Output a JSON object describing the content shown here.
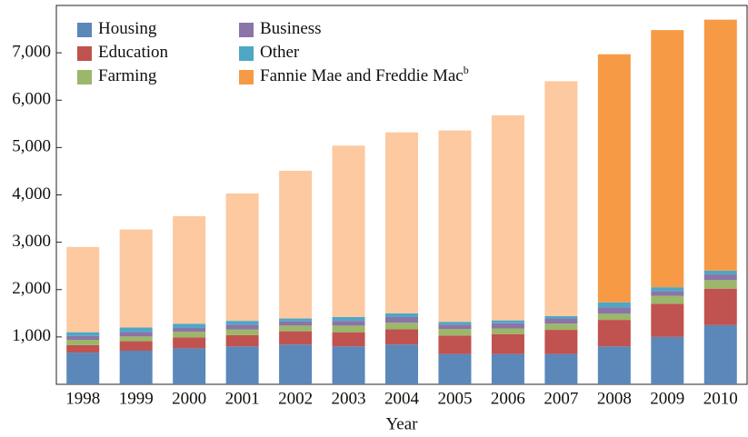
{
  "chart_data": {
    "type": "stacked_bar",
    "x_label": "Year",
    "categories": [
      "1998",
      "1999",
      "2000",
      "2001",
      "2002",
      "2003",
      "2004",
      "2005",
      "2006",
      "2007",
      "2008",
      "2009",
      "2010"
    ],
    "series": [
      {
        "name": "Housing",
        "color": "#5b87b9",
        "values": [
          670,
          710,
          760,
          800,
          840,
          800,
          840,
          640,
          640,
          640,
          800,
          1000,
          1250
        ]
      },
      {
        "name": "Education",
        "color": "#c0524f",
        "values": [
          160,
          200,
          230,
          240,
          280,
          300,
          320,
          390,
          420,
          510,
          560,
          700,
          770
        ]
      },
      {
        "name": "Farming",
        "color": "#9bb76a",
        "values": [
          110,
          100,
          120,
          120,
          120,
          140,
          140,
          140,
          120,
          130,
          130,
          170,
          180
        ]
      },
      {
        "name": "Business",
        "color": "#8b74a8",
        "values": [
          80,
          100,
          80,
          100,
          90,
          100,
          120,
          90,
          110,
          110,
          130,
          100,
          120
        ]
      },
      {
        "name": "Other",
        "color": "#4fa7c6",
        "values": [
          80,
          90,
          90,
          80,
          60,
          80,
          80,
          60,
          60,
          50,
          110,
          80,
          80
        ]
      },
      {
        "name": "Fannie Mae and Freddie Mac",
        "superscript": "b",
        "color": "#f79a46",
        "colors": [
          "#fdc9a0",
          "#fdc9a0",
          "#fdc9a0",
          "#fdc9a0",
          "#fdc9a0",
          "#fdc9a0",
          "#fdc9a0",
          "#fdc9a0",
          "#fdc9a0",
          "#fdc9a0",
          "#f79a46",
          "#f79a46",
          "#f79a46"
        ],
        "values": [
          1800,
          2070,
          2270,
          2690,
          3120,
          3620,
          3820,
          4040,
          4330,
          4960,
          5240,
          5430,
          5300
        ]
      }
    ],
    "ylim": [
      0,
      8000
    ],
    "yticks": [
      {
        "value": 1000,
        "label": "1,000"
      },
      {
        "value": 2000,
        "label": "2,000"
      },
      {
        "value": 3000,
        "label": "3,000"
      },
      {
        "value": 4000,
        "label": "4,000"
      },
      {
        "value": 5000,
        "label": "5,000"
      },
      {
        "value": 6000,
        "label": "6,000"
      },
      {
        "value": 7000,
        "label": "7,000"
      }
    ],
    "legend": "top-left"
  }
}
